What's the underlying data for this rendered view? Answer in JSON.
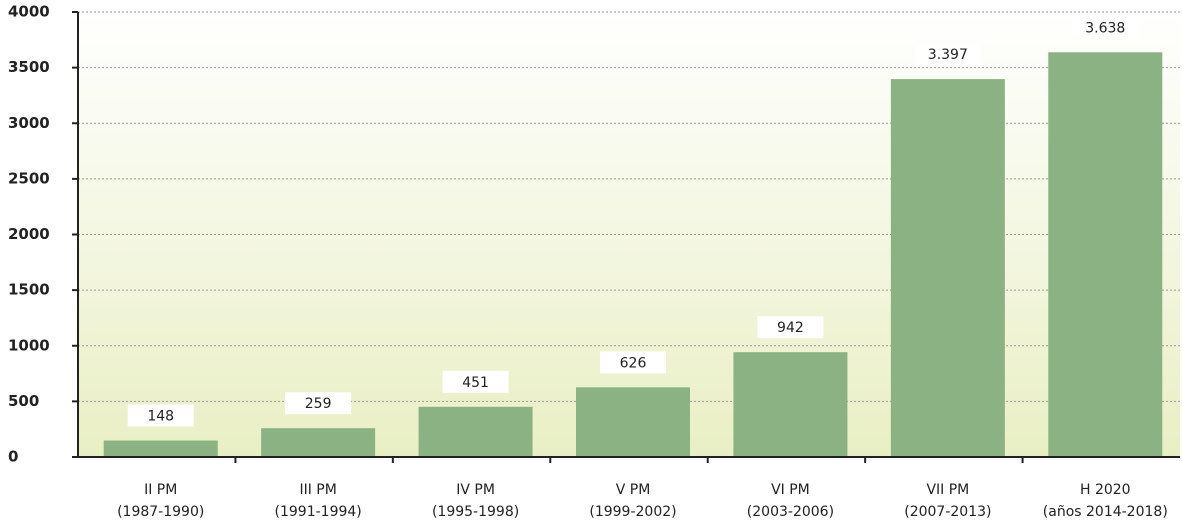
{
  "chart_data": {
    "type": "bar",
    "categories": [
      [
        "II PM",
        "(1987-1990)"
      ],
      [
        "III PM",
        "(1991-1994)"
      ],
      [
        "IV PM",
        "(1995-1998)"
      ],
      [
        "V PM",
        "(1999-2002)"
      ],
      [
        "VI PM",
        "(2003-2006)"
      ],
      [
        "VII PM",
        "(2007-2013)"
      ],
      [
        "H 2020",
        "(años 2014-2018)"
      ]
    ],
    "values": [
      148,
      259,
      451,
      626,
      942,
      3397,
      3638
    ],
    "value_labels": [
      "148",
      "259",
      "451",
      "626",
      "942",
      "3.397",
      "3.638"
    ],
    "color": "#8bb282",
    "ylim": [
      0,
      4000
    ],
    "yticks": [
      0,
      500,
      1000,
      1500,
      2000,
      2500,
      3000,
      3500,
      4000
    ],
    "grid": true
  }
}
